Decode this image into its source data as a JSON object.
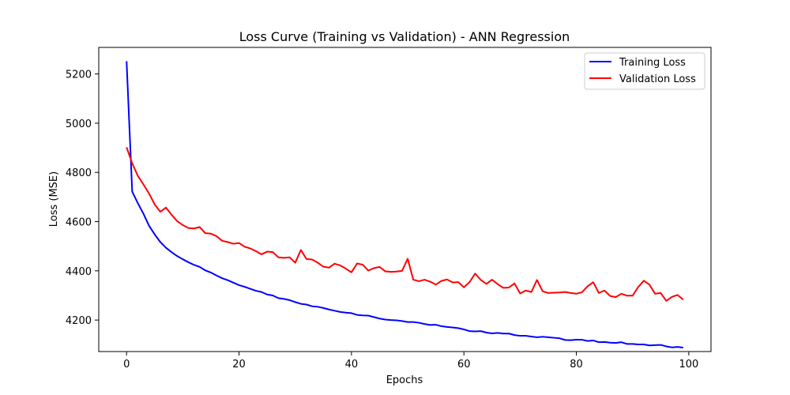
{
  "chart_data": {
    "type": "line",
    "title": "Loss Curve (Training vs Validation) - ANN Regression",
    "xlabel": "Epochs",
    "ylabel": "Loss (MSE)",
    "xlim": [
      -4.95,
      103.95
    ],
    "ylim": [
      4072,
      5308
    ],
    "xticks": [
      0,
      20,
      40,
      60,
      80,
      100
    ],
    "yticks": [
      4200,
      4400,
      4600,
      4800,
      5000,
      5200
    ],
    "grid": false,
    "legend": {
      "position": "upper right"
    },
    "x": [
      0,
      1,
      2,
      3,
      4,
      5,
      6,
      7,
      8,
      9,
      10,
      11,
      12,
      13,
      14,
      15,
      16,
      17,
      18,
      19,
      20,
      21,
      22,
      23,
      24,
      25,
      26,
      27,
      28,
      29,
      30,
      31,
      32,
      33,
      34,
      35,
      36,
      37,
      38,
      39,
      40,
      41,
      42,
      43,
      44,
      45,
      46,
      47,
      48,
      49,
      50,
      51,
      52,
      53,
      54,
      55,
      56,
      57,
      58,
      59,
      60,
      61,
      62,
      63,
      64,
      65,
      66,
      67,
      68,
      69,
      70,
      71,
      72,
      73,
      74,
      75,
      76,
      77,
      78,
      79,
      80,
      81,
      82,
      83,
      84,
      85,
      86,
      87,
      88,
      89,
      90,
      91,
      92,
      93,
      94,
      95,
      96,
      97,
      98,
      99
    ],
    "series": [
      {
        "name": "Training Loss",
        "color": "#0000ff",
        "values": [
          5252,
          4722,
          4675,
          4632,
          4583,
          4548,
          4517,
          4494,
          4476,
          4460,
          4447,
          4435,
          4424,
          4416,
          4402,
          4393,
          4381,
          4370,
          4362,
          4352,
          4342,
          4335,
          4327,
          4319,
          4314,
          4304,
          4300,
          4289,
          4286,
          4281,
          4273,
          4266,
          4263,
          4256,
          4254,
          4249,
          4243,
          4238,
          4233,
          4230,
          4228,
          4221,
          4219,
          4218,
          4212,
          4206,
          4202,
          4200,
          4199,
          4196,
          4192,
          4192,
          4189,
          4184,
          4180,
          4181,
          4175,
          4172,
          4170,
          4167,
          4162,
          4155,
          4154,
          4155,
          4149,
          4146,
          4148,
          4145,
          4145,
          4139,
          4136,
          4136,
          4133,
          4130,
          4132,
          4130,
          4128,
          4126,
          4119,
          4118,
          4120,
          4120,
          4115,
          4117,
          4110,
          4111,
          4108,
          4107,
          4110,
          4103,
          4103,
          4101,
          4101,
          4097,
          4098,
          4099,
          4093,
          4089,
          4091,
          4088
        ]
      },
      {
        "name": "Validation Loss",
        "color": "#ff0000",
        "values": [
          4902,
          4837,
          4786,
          4751,
          4714,
          4670,
          4640,
          4657,
          4628,
          4602,
          4586,
          4574,
          4572,
          4578,
          4553,
          4551,
          4541,
          4522,
          4517,
          4510,
          4513,
          4498,
          4491,
          4480,
          4467,
          4478,
          4476,
          4455,
          4453,
          4455,
          4433,
          4485,
          4448,
          4446,
          4433,
          4417,
          4413,
          4429,
          4422,
          4409,
          4394,
          4430,
          4425,
          4401,
          4411,
          4416,
          4398,
          4396,
          4397,
          4400,
          4449,
          4364,
          4358,
          4364,
          4356,
          4344,
          4359,
          4365,
          4353,
          4354,
          4333,
          4354,
          4389,
          4363,
          4347,
          4364,
          4346,
          4331,
          4332,
          4349,
          4308,
          4320,
          4314,
          4363,
          4317,
          4310,
          4311,
          4312,
          4314,
          4310,
          4307,
          4313,
          4337,
          4354,
          4310,
          4320,
          4298,
          4293,
          4307,
          4299,
          4299,
          4334,
          4360,
          4344,
          4307,
          4310,
          4278,
          4294,
          4302,
          4283
        ]
      }
    ]
  }
}
